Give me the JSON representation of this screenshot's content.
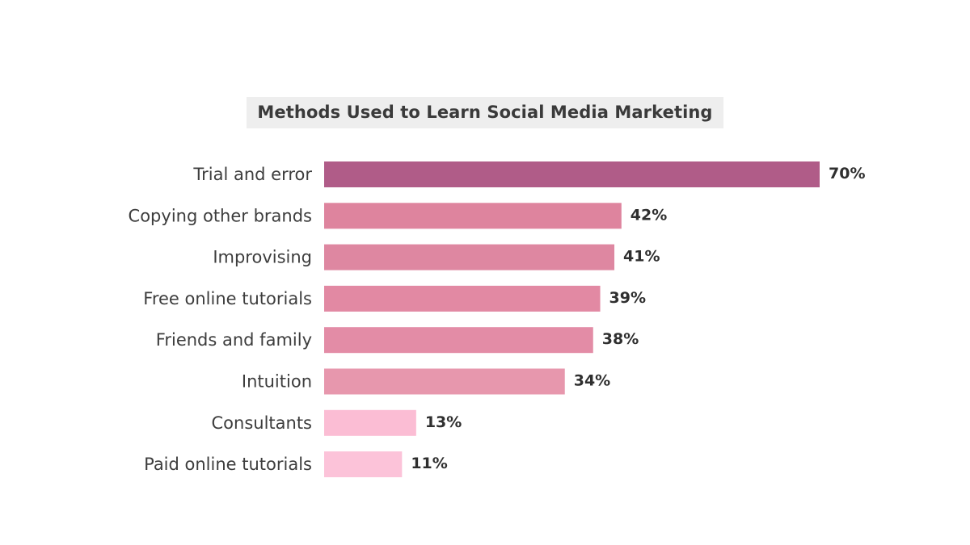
{
  "chart_data": {
    "type": "bar",
    "orientation": "horizontal",
    "title": "Methods Used to Learn Social Media Marketing",
    "categories": [
      "Trial and error",
      "Copying other brands",
      "Improvising",
      "Free online tutorials",
      "Friends and family",
      "Intuition",
      "Consultants",
      "Paid online tutorials"
    ],
    "values": [
      70,
      42,
      41,
      39,
      38,
      34,
      13,
      11
    ],
    "value_labels": [
      "70%",
      "42%",
      "41%",
      "39%",
      "38%",
      "34%",
      "13%",
      "11%"
    ],
    "colors": [
      "#b05c88",
      "#de849e",
      "#de87a1",
      "#e289a3",
      "#e38ca6",
      "#e797ad",
      "#fbbdd4",
      "#fcc3d9"
    ],
    "unit": "%",
    "xlim": [
      0,
      70
    ],
    "grid": false,
    "legend": "none"
  }
}
